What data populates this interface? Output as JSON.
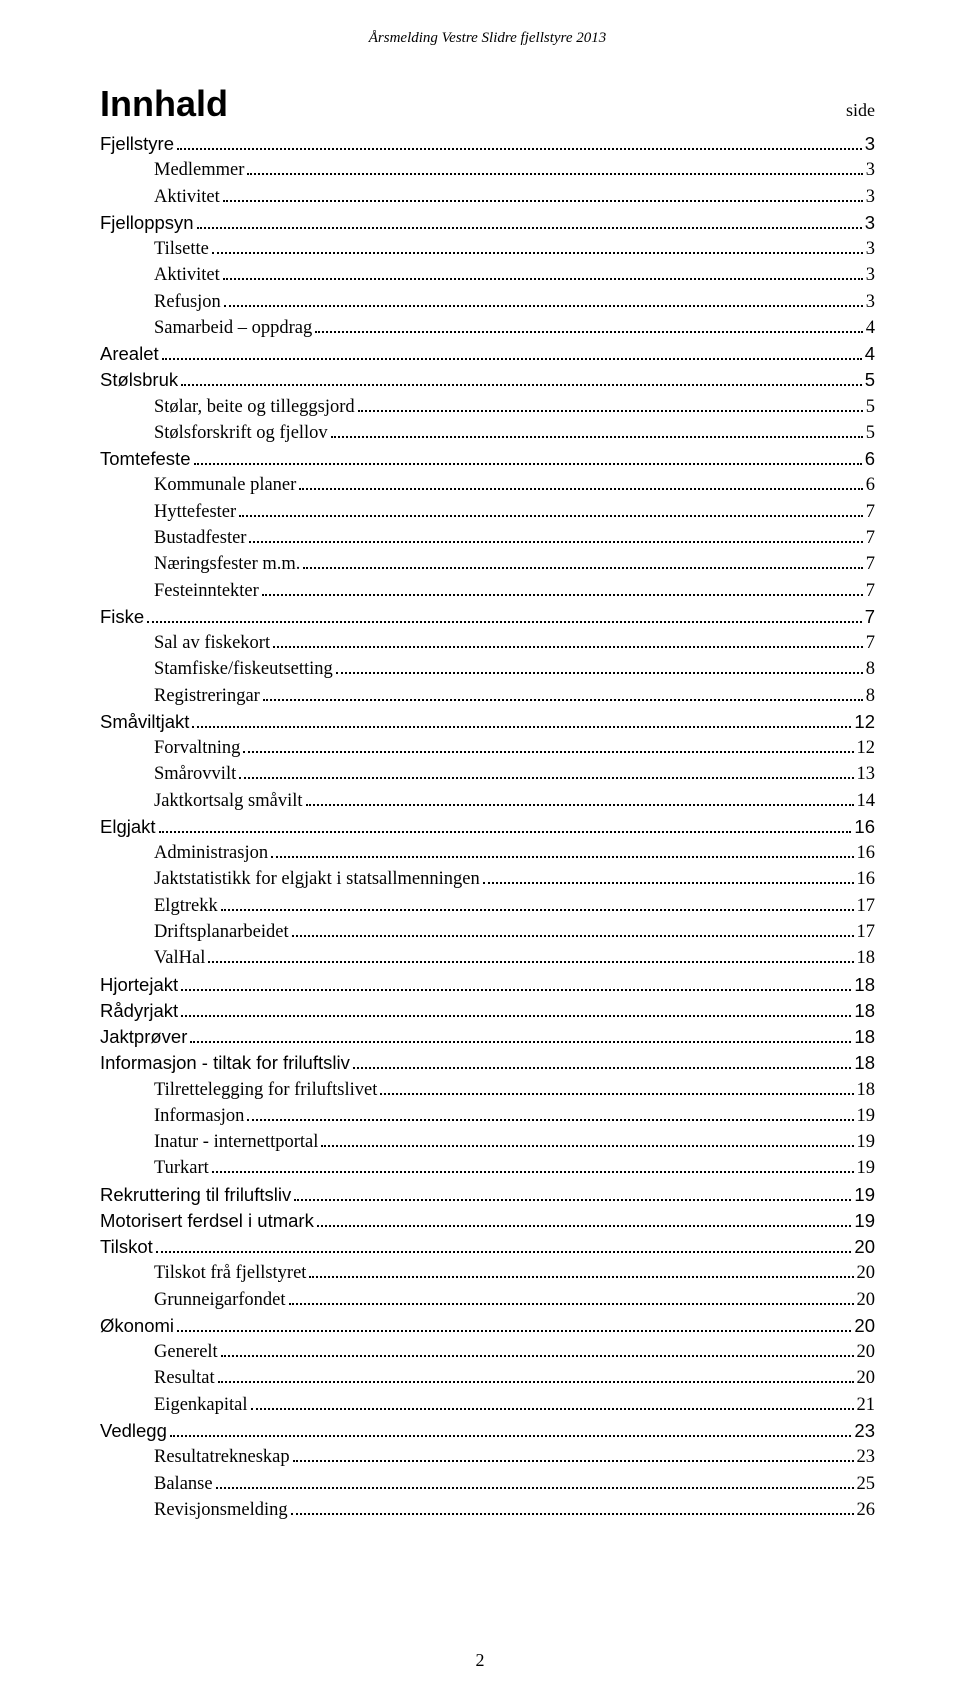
{
  "header": "Årsmelding Vestre Slidre fjellstyre 2013",
  "title": "Innhald",
  "title_side": "side",
  "page_number": "2",
  "toc": [
    {
      "level": 0,
      "label": "Fjellstyre",
      "page": "3"
    },
    {
      "level": 1,
      "label": "Medlemmer",
      "page": "3"
    },
    {
      "level": 1,
      "label": "Aktivitet",
      "page": "3"
    },
    {
      "level": 0,
      "label": "Fjelloppsyn",
      "page": "3"
    },
    {
      "level": 1,
      "label": "Tilsette",
      "page": "3"
    },
    {
      "level": 1,
      "label": "Aktivitet",
      "page": "3"
    },
    {
      "level": 1,
      "label": "Refusjon",
      "page": "3"
    },
    {
      "level": 1,
      "label": "Samarbeid – oppdrag",
      "page": "4"
    },
    {
      "level": 0,
      "label": "Arealet",
      "page": "4"
    },
    {
      "level": 0,
      "label": "Stølsbruk",
      "page": "5"
    },
    {
      "level": 1,
      "label": "Stølar, beite og tilleggsjord",
      "page": "5"
    },
    {
      "level": 1,
      "label": "Stølsforskrift og fjellov",
      "page": "5"
    },
    {
      "level": 0,
      "label": "Tomtefeste",
      "page": "6"
    },
    {
      "level": 1,
      "label": "Kommunale planer",
      "page": "6"
    },
    {
      "level": 1,
      "label": "Hyttefester",
      "page": "7"
    },
    {
      "level": 1,
      "label": "Bustadfester",
      "page": "7"
    },
    {
      "level": 1,
      "label": "Næringsfester m.m.",
      "page": "7"
    },
    {
      "level": 1,
      "label": "Festeinntekter",
      "page": "7"
    },
    {
      "level": 0,
      "label": "Fiske",
      "page": "7"
    },
    {
      "level": 1,
      "label": "Sal av fiskekort",
      "page": "7"
    },
    {
      "level": 1,
      "label": "Stamfiske/fiskeutsetting",
      "page": "8"
    },
    {
      "level": 1,
      "label": "Registreringar",
      "page": "8"
    },
    {
      "level": 0,
      "label": "Småviltjakt",
      "page": "12"
    },
    {
      "level": 1,
      "label": "Forvaltning",
      "page": "12"
    },
    {
      "level": 1,
      "label": "Smårovvilt",
      "page": "13"
    },
    {
      "level": 1,
      "label": "Jaktkortsalg småvilt",
      "page": "14"
    },
    {
      "level": 0,
      "label": "Elgjakt",
      "page": "16"
    },
    {
      "level": 1,
      "label": "Administrasjon",
      "page": "16"
    },
    {
      "level": 1,
      "label": "Jaktstatistikk for elgjakt i statsallmenningen",
      "page": "16"
    },
    {
      "level": 1,
      "label": "Elgtrekk",
      "page": "17"
    },
    {
      "level": 1,
      "label": "Driftsplanarbeidet",
      "page": "17"
    },
    {
      "level": 1,
      "label": "ValHal",
      "page": "18"
    },
    {
      "level": 0,
      "label": "Hjortejakt",
      "page": "18"
    },
    {
      "level": 0,
      "label": "Rådyrjakt",
      "page": "18"
    },
    {
      "level": 0,
      "label": "Jaktprøver",
      "page": "18"
    },
    {
      "level": 0,
      "label": "Informasjon - tiltak for friluftsliv",
      "page": "18"
    },
    {
      "level": 1,
      "label": "Tilrettelegging for friluftslivet",
      "page": "18"
    },
    {
      "level": 1,
      "label": "Informasjon",
      "page": "19"
    },
    {
      "level": 1,
      "label": "Inatur - internettportal",
      "page": "19"
    },
    {
      "level": 1,
      "label": "Turkart",
      "page": "19"
    },
    {
      "level": 0,
      "label": "Rekruttering til friluftsliv",
      "page": "19"
    },
    {
      "level": 0,
      "label": "Motorisert ferdsel i utmark",
      "page": "19"
    },
    {
      "level": 0,
      "label": "Tilskot",
      "page": "20"
    },
    {
      "level": 1,
      "label": "Tilskot frå fjellstyret",
      "page": "20"
    },
    {
      "level": 1,
      "label": "Grunneigarfondet",
      "page": "20"
    },
    {
      "level": 0,
      "label": "Økonomi",
      "page": "20"
    },
    {
      "level": 1,
      "label": "Generelt",
      "page": "20"
    },
    {
      "level": 1,
      "label": "Resultat",
      "page": "20"
    },
    {
      "level": 1,
      "label": "Eigenkapital",
      "page": "21"
    },
    {
      "level": 0,
      "label": "Vedlegg",
      "page": "23"
    },
    {
      "level": 1,
      "label": "Resultatrekneskap",
      "page": "23"
    },
    {
      "level": 1,
      "label": "Balanse",
      "page": "25"
    },
    {
      "level": 1,
      "label": "Revisjonsmelding",
      "page": "26"
    }
  ]
}
